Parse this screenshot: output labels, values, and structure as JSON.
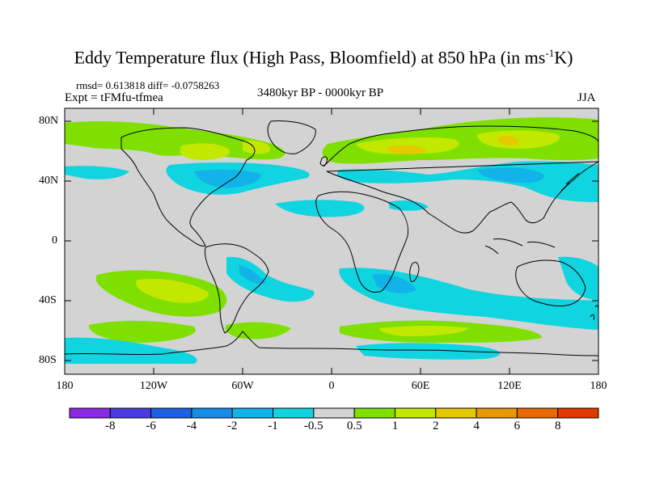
{
  "title": {
    "main": "Eddy Temperature flux (High Pass, Bloomfield) at 850 hPa (in ms",
    "sup": "-1",
    "tail": "K)"
  },
  "stats": "rmsd= 0.613818 diff= -0.0758263",
  "experiment": "Expt = tFMfu-tfmea",
  "period": "3480kyr BP - 0000kyr BP",
  "season": "JJA",
  "map": {
    "background_color": "#d3d3d3",
    "coastline_color": "#000000",
    "lat_ticks": [
      "80N",
      "40N",
      "0",
      "40S",
      "80S"
    ],
    "lon_ticks": [
      "180",
      "120W",
      "60W",
      "0",
      "60E",
      "120E",
      "180"
    ]
  },
  "colorbar": {
    "colors": [
      "#8a2be2",
      "#4b3bde",
      "#1c61e0",
      "#168ce6",
      "#12b3e8",
      "#10d4e0",
      "#d3d3d3",
      "#7fe000",
      "#c3e800",
      "#e6c800",
      "#e89a00",
      "#e86a00",
      "#e03a00"
    ],
    "labels": [
      "-8",
      "-6",
      "-4",
      "-2",
      "-1",
      "-0.5",
      "0.5",
      "1",
      "2",
      "4",
      "6",
      "8"
    ]
  }
}
